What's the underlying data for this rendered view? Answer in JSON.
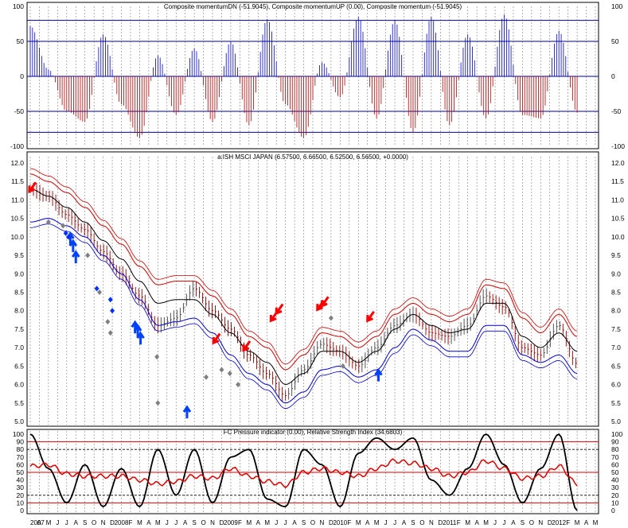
{
  "panels": {
    "momentum": {
      "title": "Composite momentumDN (-51.9045), Composite momentumUP (0.00), Composite momentum (-51.9045)",
      "ticks": [
        100,
        50,
        0,
        -50,
        -100
      ],
      "tick_labels": [
        "100",
        "50",
        "0",
        "-50",
        "-100"
      ],
      "hlines": [
        80,
        50,
        0,
        -50,
        -80
      ]
    },
    "price": {
      "title": "a:ISH MSCI JAPAN (6.57500, 6.66500, 6.52500, 6.56500, +0.0000)",
      "ticks": [
        12.0,
        11.5,
        11.0,
        10.5,
        10.0,
        9.5,
        9.0,
        8.5,
        8.0,
        7.5,
        7.0,
        6.5,
        6.0,
        5.5,
        5.0
      ],
      "tick_labels": [
        "12.0",
        "11.5",
        "11.0",
        "10.5",
        "10.0",
        "9.5",
        "9.0",
        "8.5",
        "8.0",
        "7.5",
        "7.0",
        "6.5",
        "6.0",
        "5.5",
        "5.0"
      ]
    },
    "pressure": {
      "title": "FC Pressure indicator (0.00), Relative Strength Index (34.6803)",
      "ticks": [
        100,
        90,
        80,
        70,
        60,
        50,
        40,
        30,
        20,
        10,
        0
      ],
      "tick_labels": [
        "100",
        "90",
        "80",
        "70",
        "60",
        "50",
        "40",
        "30",
        "20",
        "10",
        "0"
      ],
      "hlines_red": [
        90,
        50,
        10
      ],
      "hlines_black": [
        80,
        20
      ]
    }
  },
  "x_axis": {
    "labels": [
      "2007",
      "A",
      "M",
      "J",
      "J",
      "A",
      "S",
      "O",
      "N",
      "D",
      "2008",
      "F",
      "M",
      "A",
      "M",
      "J",
      "J",
      "A",
      "S",
      "O",
      "N",
      "D",
      "2009",
      "F",
      "M",
      "A",
      "M",
      "J",
      "J",
      "A",
      "S",
      "O",
      "N",
      "D",
      "2010",
      "F",
      "M",
      "A",
      "M",
      "J",
      "J",
      "A",
      "S",
      "O",
      "N",
      "D",
      "2011",
      "F",
      "M",
      "A",
      "M",
      "J",
      "J",
      "A",
      "S",
      "O",
      "N",
      "D",
      "2012",
      "F",
      "M",
      "A",
      "M"
    ]
  },
  "colors": {
    "up": "#0000c8",
    "down": "#b00000",
    "band_upper": "#d00000",
    "band_lower": "#0000d0",
    "mid": "#000000",
    "grid": "#808080",
    "rsi": "#e00000",
    "pressure": "#000000",
    "sell_arrow": "#ff0000",
    "buy_arrow": "#0040ff",
    "diamond_gray": "#808080",
    "diamond_blue": "#0030ff"
  },
  "chart_data": [
    {
      "type": "bar",
      "title": "Composite momentumDN (-51.9045), Composite momentumUP (0.00), Composite momentum (-51.9045)",
      "ylim": [
        -100,
        100
      ],
      "series": [
        {
          "name": "Composite momentum",
          "x": [
            0,
            2,
            4,
            6,
            8,
            10,
            12,
            14,
            16,
            18,
            20,
            22,
            24,
            26,
            28,
            30,
            32,
            34,
            36,
            38,
            40,
            42,
            44,
            46,
            48,
            50,
            52,
            54,
            56,
            58,
            60
          ],
          "values": [
            72,
            10,
            -50,
            -65,
            60,
            -40,
            -88,
            30,
            -55,
            40,
            -65,
            50,
            -70,
            82,
            -40,
            -88,
            20,
            -30,
            85,
            -60,
            80,
            -80,
            85,
            -70,
            60,
            -60,
            88,
            -55,
            -60,
            65,
            -52
          ]
        }
      ]
    },
    {
      "type": "line",
      "title": "a:ISH MSCI JAPAN (6.57500, 6.66500, 6.52500, 6.56500, +0.0000)",
      "ylim": [
        5.0,
        12.0
      ],
      "x": [
        0,
        2,
        4,
        6,
        8,
        10,
        12,
        14,
        16,
        18,
        20,
        22,
        24,
        26,
        28,
        30,
        32,
        34,
        36,
        38,
        40,
        42,
        44,
        46,
        48,
        50,
        52,
        54,
        56,
        58,
        60
      ],
      "series": [
        {
          "name": "Close",
          "values": [
            11.3,
            11.1,
            10.6,
            10.2,
            9.6,
            9.0,
            8.4,
            7.6,
            7.8,
            8.6,
            8.0,
            7.5,
            6.8,
            6.3,
            5.7,
            6.4,
            7.1,
            6.9,
            6.5,
            7.0,
            7.6,
            7.9,
            7.4,
            7.3,
            7.6,
            8.4,
            8.1,
            7.0,
            6.8,
            7.6,
            6.57
          ]
        },
        {
          "name": "Upper band",
          "values": [
            11.7,
            11.5,
            11.2,
            10.8,
            10.3,
            9.8,
            9.2,
            8.7,
            8.8,
            8.8,
            8.4,
            7.9,
            7.3,
            7.0,
            6.4,
            6.8,
            7.4,
            7.3,
            7.0,
            7.3,
            7.9,
            8.2,
            7.9,
            7.7,
            7.9,
            8.7,
            8.6,
            7.8,
            7.4,
            7.9,
            7.3
          ]
        },
        {
          "name": "Middle",
          "values": [
            11.3,
            11.1,
            10.8,
            10.4,
            9.9,
            9.4,
            8.8,
            8.2,
            8.3,
            8.3,
            7.9,
            7.4,
            6.9,
            6.6,
            6.0,
            6.3,
            6.9,
            6.9,
            6.6,
            6.9,
            7.5,
            7.9,
            7.6,
            7.4,
            7.5,
            8.2,
            8.2,
            7.3,
            7.0,
            7.4,
            6.9
          ]
        },
        {
          "name": "Lower band",
          "values": [
            10.4,
            10.5,
            10.3,
            10.0,
            9.5,
            9.0,
            8.3,
            7.6,
            7.7,
            7.8,
            7.4,
            6.8,
            6.3,
            6.0,
            5.5,
            5.8,
            6.4,
            6.5,
            6.2,
            6.4,
            7.0,
            7.5,
            7.2,
            6.9,
            6.9,
            7.6,
            7.6,
            6.8,
            6.6,
            6.8,
            6.3
          ]
        }
      ],
      "signals": {
        "sell_arrows": [
          {
            "x": 0.1,
            "y": 11.3
          },
          {
            "x": 20.3,
            "y": 7.2
          },
          {
            "x": 23.6,
            "y": 7.0
          },
          {
            "x": 26.6,
            "y": 7.8
          },
          {
            "x": 27.2,
            "y": 8.0
          },
          {
            "x": 31.7,
            "y": 8.1
          },
          {
            "x": 32.2,
            "y": 8.2
          },
          {
            "x": 37.2,
            "y": 7.8
          }
        ],
        "buy_arrows": [
          {
            "x": 4.4,
            "y": 10.0
          },
          {
            "x": 4.7,
            "y": 9.8
          },
          {
            "x": 5.0,
            "y": 9.5
          },
          {
            "x": 11.5,
            "y": 7.6
          },
          {
            "x": 11.8,
            "y": 7.5
          },
          {
            "x": 12.1,
            "y": 7.3
          },
          {
            "x": 17.2,
            "y": 5.3
          },
          {
            "x": 38.2,
            "y": 6.3
          }
        ],
        "diamonds_gray": [
          {
            "x": 2.0,
            "y": 10.4
          },
          {
            "x": 3.6,
            "y": 10.3
          },
          {
            "x": 6.3,
            "y": 9.5
          },
          {
            "x": 7.6,
            "y": 8.5
          },
          {
            "x": 8.5,
            "y": 7.7
          },
          {
            "x": 8.8,
            "y": 7.4
          },
          {
            "x": 13.9,
            "y": 6.75
          },
          {
            "x": 14.0,
            "y": 5.5
          },
          {
            "x": 19.3,
            "y": 6.2
          },
          {
            "x": 21.0,
            "y": 6.4
          },
          {
            "x": 21.9,
            "y": 6.3
          },
          {
            "x": 22.8,
            "y": 6.0
          },
          {
            "x": 33.0,
            "y": 7.8
          },
          {
            "x": 34.3,
            "y": 6.5
          }
        ],
        "diamonds_blue": [
          {
            "x": 3.9,
            "y": 10.1
          },
          {
            "x": 4.2,
            "y": 10.0
          },
          {
            "x": 7.3,
            "y": 8.6
          },
          {
            "x": 8.8,
            "y": 8.3
          },
          {
            "x": 9.0,
            "y": 8.0
          }
        ]
      }
    },
    {
      "type": "line",
      "title": "FC Pressure indicator (0.00), Relative Strength Index (34.6803)",
      "ylim": [
        0,
        100
      ],
      "x": [
        0,
        2,
        4,
        6,
        8,
        10,
        12,
        14,
        16,
        18,
        20,
        22,
        24,
        26,
        28,
        30,
        32,
        34,
        36,
        38,
        40,
        42,
        44,
        46,
        48,
        50,
        52,
        54,
        56,
        58,
        60
      ],
      "series": [
        {
          "name": "FC Pressure indicator",
          "values": [
            100,
            55,
            10,
            60,
            5,
            55,
            5,
            80,
            20,
            80,
            10,
            70,
            80,
            15,
            5,
            80,
            60,
            5,
            75,
            95,
            80,
            95,
            40,
            20,
            55,
            100,
            60,
            10,
            55,
            100,
            0
          ]
        },
        {
          "name": "Relative Strength Index",
          "values": [
            58,
            60,
            48,
            45,
            45,
            45,
            40,
            35,
            38,
            45,
            42,
            55,
            45,
            38,
            33,
            50,
            55,
            50,
            45,
            55,
            65,
            62,
            55,
            45,
            50,
            65,
            55,
            42,
            45,
            58,
            35
          ]
        }
      ]
    }
  ]
}
